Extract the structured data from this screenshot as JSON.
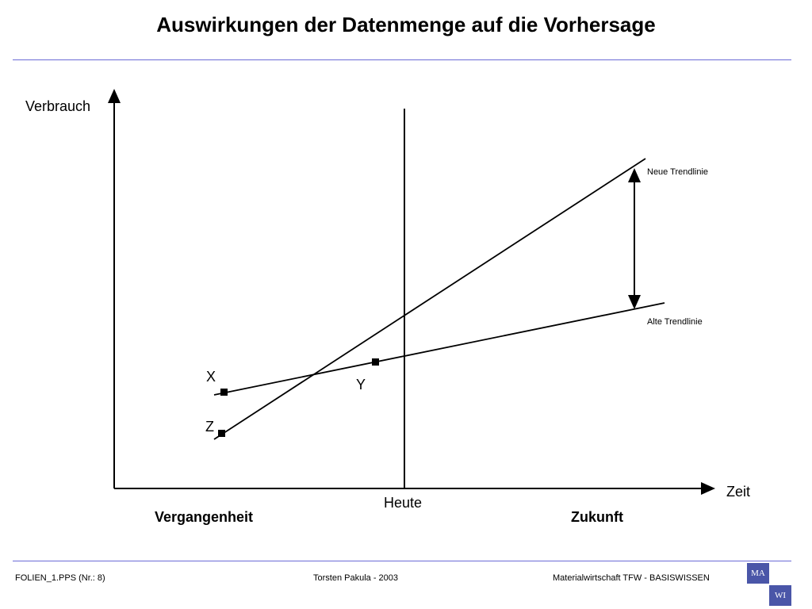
{
  "slide": {
    "title": "Auswirkungen der Datenmenge auf die Vorhersage"
  },
  "diagram": {
    "y_axis_label": "Verbrauch",
    "x_axis_label": "Zeit",
    "now_label": "Heute",
    "past_label": "Vergangenheit",
    "future_label": "Zukunft",
    "new_trend_label": "Neue Trendlinie",
    "old_trend_label": "Alte Trendlinie",
    "point_x_label": "X",
    "point_y_label": "Y",
    "point_z_label": "Z"
  },
  "footer": {
    "file": "FOLIEN_1.PPS (Nr.: 8)",
    "author": "Torsten Pakula - 2003",
    "course": "Materialwirtschaft TFW - BASISWISSEN"
  },
  "logo": {
    "top_box": "MA",
    "bottom_box": "WI",
    "accent": "#4a56a8"
  }
}
